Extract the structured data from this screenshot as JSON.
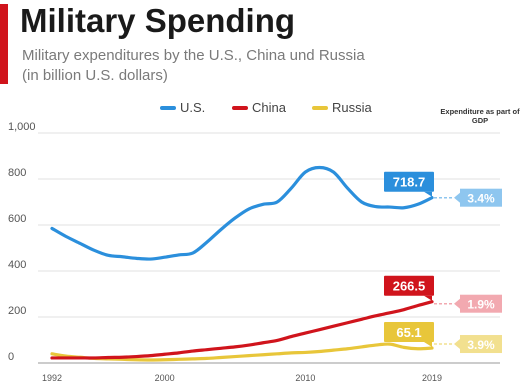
{
  "header": {
    "title": "Military Spending",
    "subtitle": "Military expenditures by the U.S., China und Russia (in billion U.S. dollars)",
    "gdp_label": "Expenditure as part of GDP"
  },
  "colors": {
    "us": "#2b8fdc",
    "china": "#d0141c",
    "russia": "#e8c63a",
    "accent": "#d0141c",
    "gdp_us": "#8ec6ef",
    "gdp_china": "#f2a9b0",
    "gdp_russia": "#f2e08f"
  },
  "chart_data": {
    "type": "line",
    "x": [
      1992,
      1993,
      1994,
      1995,
      1996,
      1997,
      1998,
      1999,
      2000,
      2001,
      2002,
      2003,
      2004,
      2005,
      2006,
      2007,
      2008,
      2009,
      2010,
      2011,
      2012,
      2013,
      2014,
      2015,
      2016,
      2017,
      2018,
      2019
    ],
    "series": [
      {
        "name": "U.S.",
        "key": "us",
        "values": [
          585,
          550,
          520,
          490,
          468,
          462,
          455,
          452,
          460,
          470,
          478,
          525,
          580,
          630,
          670,
          690,
          700,
          760,
          830,
          850,
          830,
          760,
          700,
          680,
          678,
          675,
          690,
          718.7
        ]
      },
      {
        "name": "China",
        "key": "china",
        "values": [
          22,
          22,
          22,
          22,
          24,
          25,
          28,
          32,
          38,
          44,
          52,
          58,
          64,
          70,
          78,
          88,
          98,
          115,
          130,
          145,
          160,
          175,
          190,
          205,
          218,
          232,
          250,
          266.5
        ]
      },
      {
        "name": "Russia",
        "key": "russia",
        "values": [
          40,
          30,
          25,
          20,
          18,
          16,
          14,
          13,
          14,
          16,
          18,
          20,
          24,
          28,
          32,
          36,
          40,
          44,
          46,
          50,
          56,
          62,
          70,
          78,
          82,
          68,
          62,
          65.1
        ]
      }
    ],
    "end_labels": [
      {
        "key": "us",
        "text": "718.7"
      },
      {
        "key": "china",
        "text": "266.5"
      },
      {
        "key": "russia",
        "text": "65.1"
      }
    ],
    "gdp_badges": [
      {
        "key": "us",
        "text": "3.4%"
      },
      {
        "key": "china",
        "text": "1.9%"
      },
      {
        "key": "russia",
        "text": "3.9%"
      }
    ],
    "y_ticks": [
      0,
      200,
      400,
      600,
      800,
      1000
    ],
    "y_tick_labels": [
      "0",
      "200",
      "400",
      "600",
      "800",
      "1,000"
    ],
    "x_ticks": [
      1992,
      2000,
      2010,
      2019
    ],
    "ylim": [
      0,
      1000
    ],
    "xlim": [
      1992,
      2019
    ],
    "grid": true,
    "legend": "top-center"
  }
}
